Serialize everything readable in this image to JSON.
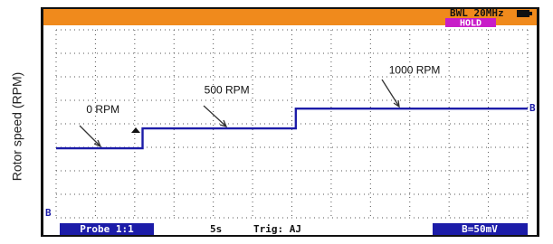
{
  "chart_data": {
    "type": "line",
    "y_label": "Rotor speed (RPM)",
    "x": [
      0,
      11,
      11,
      30.5,
      30.5,
      60
    ],
    "series": [
      {
        "name": "B",
        "color": "#1c1ca8",
        "values": [
          0,
          0,
          500,
          500,
          1000,
          1000
        ]
      }
    ],
    "xlim": [
      0,
      60
    ],
    "ylim": [
      -1800,
      3100
    ],
    "grid": true,
    "annotations": [
      {
        "text": "0 RPM",
        "x": 5,
        "y": 0
      },
      {
        "text": "500 RPM",
        "x": 20,
        "y": 500
      },
      {
        "text": "1000 RPM",
        "x": 43.5,
        "y": 1000
      }
    ],
    "status": {
      "bandwidth": "BWL 20MHz",
      "hold": "HOLD",
      "probe": "Probe 1:1",
      "timebase": "5s",
      "trigger": "Trig: AJ",
      "scale": "B=50mV",
      "channel_marker": "B"
    }
  }
}
